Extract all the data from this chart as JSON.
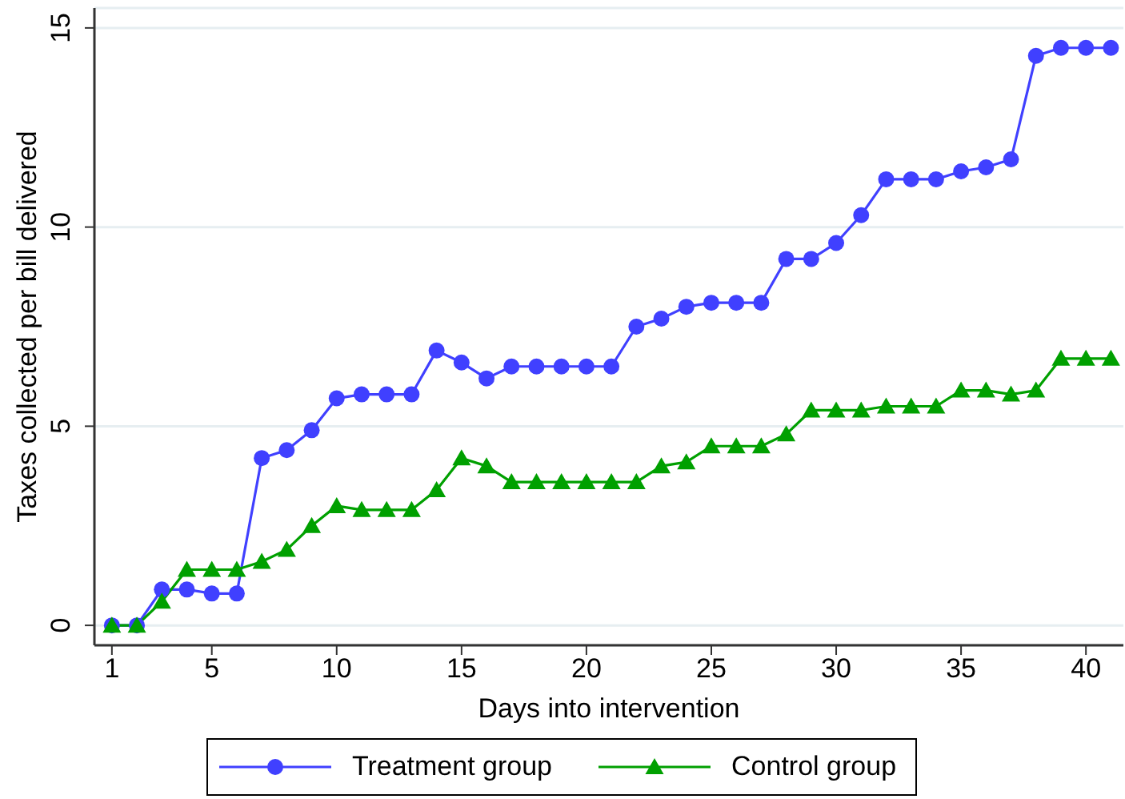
{
  "chart_data": {
    "type": "line",
    "xlabel": "Days into intervention",
    "ylabel": "Taxes collected per bill delivered",
    "x": [
      1,
      2,
      3,
      4,
      5,
      6,
      7,
      8,
      9,
      10,
      11,
      12,
      13,
      14,
      15,
      16,
      17,
      18,
      19,
      20,
      21,
      22,
      23,
      24,
      25,
      26,
      27,
      28,
      29,
      30,
      31,
      32,
      33,
      34,
      35,
      36,
      37,
      38,
      39,
      40,
      41
    ],
    "xlim": [
      0.3,
      41.5
    ],
    "xticks": [
      1,
      5,
      10,
      15,
      20,
      25,
      30,
      35,
      40
    ],
    "ylim": [
      -0.5,
      15.5
    ],
    "yticks": [
      0,
      5,
      10,
      15
    ],
    "grid": "y",
    "legend": "bottom",
    "series": [
      {
        "name": "Treatment group",
        "color": "#4040ff",
        "marker": "circle",
        "values": [
          0,
          0,
          0.9,
          0.9,
          0.8,
          0.8,
          4.2,
          4.4,
          4.9,
          5.7,
          5.8,
          5.8,
          5.8,
          6.9,
          6.6,
          6.2,
          6.5,
          6.5,
          6.5,
          6.5,
          6.5,
          7.5,
          7.7,
          8.0,
          8.1,
          8.1,
          8.1,
          9.2,
          9.2,
          9.6,
          10.3,
          11.2,
          11.2,
          11.2,
          11.4,
          11.5,
          11.7,
          14.3,
          14.5,
          14.5,
          14.5
        ]
      },
      {
        "name": "Control group",
        "color": "#00a000",
        "marker": "triangle",
        "values": [
          0,
          0,
          0.6,
          1.4,
          1.4,
          1.4,
          1.6,
          1.9,
          2.5,
          3.0,
          2.9,
          2.9,
          2.9,
          3.4,
          4.2,
          4.0,
          3.6,
          3.6,
          3.6,
          3.6,
          3.6,
          3.6,
          4.0,
          4.1,
          4.5,
          4.5,
          4.5,
          4.8,
          5.4,
          5.4,
          5.4,
          5.5,
          5.5,
          5.5,
          5.9,
          5.9,
          5.8,
          5.9,
          6.7,
          6.7,
          6.7
        ]
      }
    ]
  }
}
